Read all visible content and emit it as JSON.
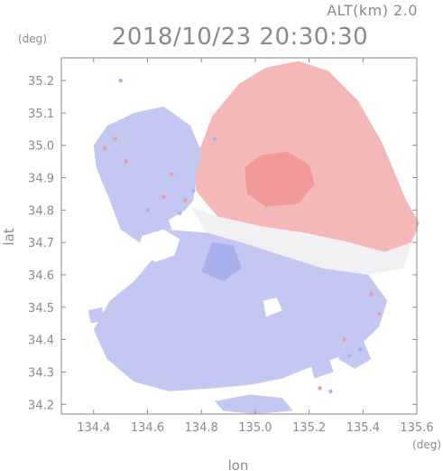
{
  "chart_data": {
    "type": "heatmap",
    "title": "2018/10/23 20:30:30",
    "subtitle": "ALT(km) 2.0",
    "xlabel": "lon",
    "ylabel": "lat",
    "x_unit": "(deg)",
    "y_unit": "(deg)",
    "xlim": [
      134.28,
      135.6
    ],
    "ylim": [
      34.17,
      35.27
    ],
    "x_ticks": [
      "134.4",
      "134.6",
      "134.8",
      "135.0",
      "135.2",
      "135.4",
      "135.6"
    ],
    "y_ticks": [
      "34.2",
      "34.3",
      "34.4",
      "34.5",
      "34.6",
      "34.7",
      "34.8",
      "34.9",
      "35.0",
      "35.1",
      "35.2"
    ],
    "grid": false,
    "colors": {
      "positive": "#f5b8b8",
      "positive_strong": "#f29a9a",
      "neutral": "#f3f0f3",
      "negative": "#c3c8f2",
      "negative_strong": "#a9b0ee",
      "axis": "#8a8a8a"
    },
    "regions": [
      {
        "sign": "positive",
        "polygon": [
          [
            134.8,
            35.0
          ],
          [
            134.84,
            35.09
          ],
          [
            134.94,
            35.19
          ],
          [
            135.04,
            35.24
          ],
          [
            135.16,
            35.26
          ],
          [
            135.27,
            35.23
          ],
          [
            135.38,
            35.14
          ],
          [
            135.47,
            35.01
          ],
          [
            135.56,
            34.83
          ],
          [
            135.61,
            34.76
          ],
          [
            135.58,
            34.7
          ],
          [
            135.48,
            34.67
          ],
          [
            135.35,
            34.7
          ],
          [
            135.18,
            34.73
          ],
          [
            135.02,
            34.75
          ],
          [
            134.86,
            34.78
          ],
          [
            134.78,
            34.86
          ],
          [
            134.76,
            34.94
          ]
        ]
      },
      {
        "sign": "positive_strong",
        "polygon": [
          [
            134.96,
            34.93
          ],
          [
            135.02,
            34.97
          ],
          [
            135.12,
            34.98
          ],
          [
            135.2,
            34.94
          ],
          [
            135.22,
            34.88
          ],
          [
            135.16,
            34.82
          ],
          [
            135.04,
            34.81
          ],
          [
            134.97,
            34.85
          ]
        ]
      },
      {
        "sign": "neutral",
        "polygon": [
          [
            134.76,
            34.81
          ],
          [
            134.86,
            34.78
          ],
          [
            135.02,
            34.75
          ],
          [
            135.18,
            34.73
          ],
          [
            135.35,
            34.7
          ],
          [
            135.48,
            34.67
          ],
          [
            135.58,
            34.7
          ],
          [
            135.55,
            34.62
          ],
          [
            135.42,
            34.6
          ],
          [
            135.25,
            34.62
          ],
          [
            135.1,
            34.66
          ],
          [
            134.95,
            34.7
          ],
          [
            134.82,
            34.73
          ]
        ]
      },
      {
        "sign": "negative",
        "polygon": [
          [
            134.45,
            35.06
          ],
          [
            134.55,
            35.1
          ],
          [
            134.66,
            35.12
          ],
          [
            134.76,
            35.06
          ],
          [
            134.8,
            34.98
          ],
          [
            134.78,
            34.9
          ],
          [
            134.77,
            34.83
          ],
          [
            134.74,
            34.8
          ],
          [
            134.66,
            34.76
          ],
          [
            134.57,
            34.7
          ],
          [
            134.5,
            34.74
          ],
          [
            134.46,
            34.83
          ],
          [
            134.41,
            34.93
          ],
          [
            134.4,
            35.0
          ]
        ]
      },
      {
        "sign": "negative",
        "polygon": [
          [
            134.57,
            34.7
          ],
          [
            134.66,
            34.74
          ],
          [
            134.82,
            34.73
          ],
          [
            134.95,
            34.7
          ],
          [
            135.1,
            34.66
          ],
          [
            135.25,
            34.62
          ],
          [
            135.42,
            34.6
          ],
          [
            135.49,
            34.52
          ],
          [
            135.46,
            34.44
          ],
          [
            135.36,
            34.36
          ],
          [
            135.22,
            34.32
          ],
          [
            135.1,
            34.28
          ],
          [
            134.98,
            34.26
          ],
          [
            134.85,
            34.25
          ],
          [
            134.68,
            34.24
          ],
          [
            134.55,
            34.27
          ],
          [
            134.45,
            34.34
          ],
          [
            134.4,
            34.43
          ],
          [
            134.46,
            34.52
          ],
          [
            134.55,
            34.58
          ],
          [
            134.62,
            34.65
          ]
        ]
      },
      {
        "sign": "negative_strong",
        "polygon": [
          [
            134.84,
            34.7
          ],
          [
            134.92,
            34.69
          ],
          [
            134.95,
            34.62
          ],
          [
            134.88,
            34.58
          ],
          [
            134.8,
            34.61
          ]
        ]
      },
      {
        "sign": "negative",
        "polygon": [
          [
            134.85,
            34.21
          ],
          [
            134.98,
            34.23
          ],
          [
            135.1,
            34.22
          ],
          [
            135.14,
            34.18
          ],
          [
            135.0,
            34.17
          ],
          [
            134.88,
            34.18
          ]
        ]
      },
      {
        "sign": "negative",
        "polygon": [
          [
            134.38,
            34.49
          ],
          [
            134.43,
            34.5
          ],
          [
            134.44,
            34.46
          ],
          [
            134.39,
            34.45
          ]
        ]
      },
      {
        "sign": "negative",
        "polygon": [
          [
            134.6,
            34.78
          ],
          [
            134.67,
            34.79
          ],
          [
            134.69,
            34.74
          ],
          [
            134.62,
            34.73
          ]
        ]
      },
      {
        "sign": "negative",
        "polygon": [
          [
            135.33,
            34.39
          ],
          [
            135.4,
            34.4
          ],
          [
            135.43,
            34.34
          ],
          [
            135.37,
            34.31
          ],
          [
            135.31,
            34.34
          ]
        ]
      },
      {
        "sign": "negative",
        "polygon": [
          [
            135.2,
            34.34
          ],
          [
            135.27,
            34.35
          ],
          [
            135.29,
            34.3
          ],
          [
            135.22,
            34.28
          ]
        ]
      }
    ],
    "gaps": [
      {
        "polygon": [
          [
            134.58,
            34.72
          ],
          [
            134.66,
            34.74
          ],
          [
            134.72,
            34.71
          ],
          [
            134.7,
            34.66
          ],
          [
            134.63,
            34.64
          ],
          [
            134.56,
            34.67
          ]
        ]
      },
      {
        "polygon": [
          [
            135.03,
            34.52
          ],
          [
            135.08,
            34.53
          ],
          [
            135.1,
            34.49
          ],
          [
            135.04,
            34.47
          ]
        ]
      }
    ],
    "speckles": [
      {
        "lon": 134.5,
        "lat": 35.2,
        "sign": "negative_strong"
      },
      {
        "lon": 134.48,
        "lat": 35.02,
        "sign": "positive_strong"
      },
      {
        "lon": 134.44,
        "lat": 34.99,
        "sign": "positive_strong"
      },
      {
        "lon": 134.52,
        "lat": 34.95,
        "sign": "positive_strong"
      },
      {
        "lon": 134.69,
        "lat": 34.91,
        "sign": "positive_strong"
      },
      {
        "lon": 134.74,
        "lat": 34.83,
        "sign": "positive_strong"
      },
      {
        "lon": 134.77,
        "lat": 34.86,
        "sign": "negative_strong"
      },
      {
        "lon": 134.72,
        "lat": 34.79,
        "sign": "negative_strong"
      },
      {
        "lon": 134.6,
        "lat": 34.8,
        "sign": "negative_strong"
      },
      {
        "lon": 134.66,
        "lat": 34.84,
        "sign": "positive_strong"
      },
      {
        "lon": 135.39,
        "lat": 34.37,
        "sign": "negative_strong"
      },
      {
        "lon": 135.33,
        "lat": 34.4,
        "sign": "positive_strong"
      },
      {
        "lon": 135.43,
        "lat": 34.54,
        "sign": "positive_strong"
      },
      {
        "lon": 135.46,
        "lat": 34.48,
        "sign": "positive_strong"
      },
      {
        "lon": 135.35,
        "lat": 34.35,
        "sign": "negative_strong"
      },
      {
        "lon": 135.24,
        "lat": 34.25,
        "sign": "positive_strong"
      },
      {
        "lon": 135.28,
        "lat": 34.24,
        "sign": "negative_strong"
      },
      {
        "lon": 134.85,
        "lat": 35.02,
        "sign": "negative_strong"
      }
    ]
  }
}
